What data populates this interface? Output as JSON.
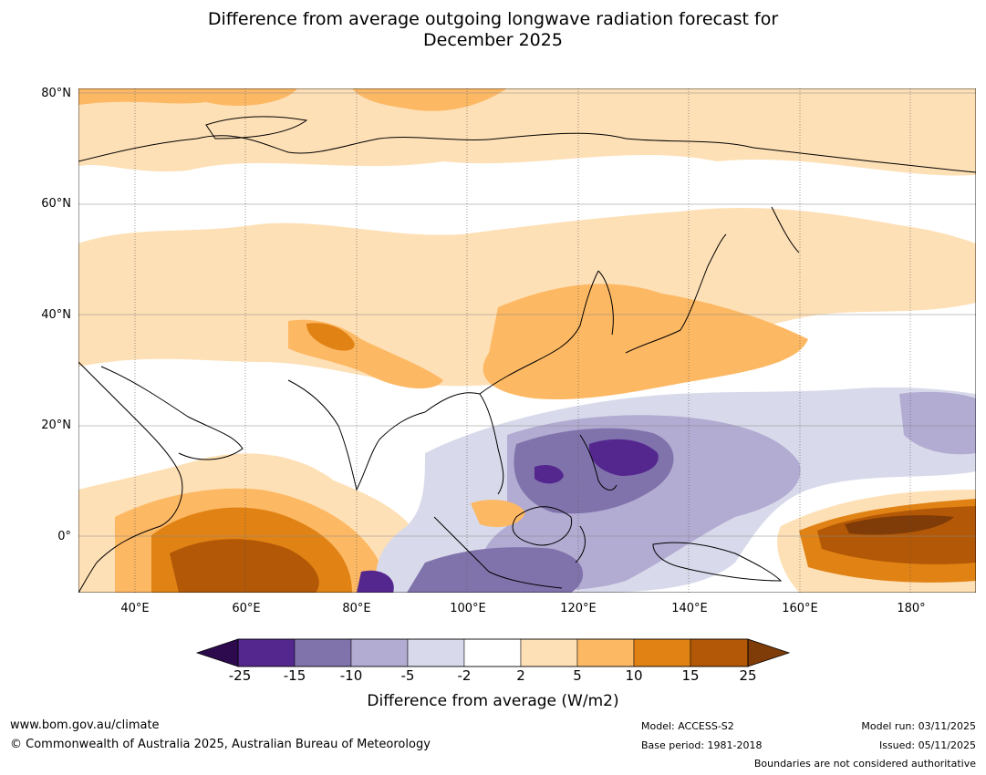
{
  "title": {
    "line1": "Difference from average outgoing longwave radiation forecast for",
    "line2": "December 2025"
  },
  "axes": {
    "lat_labels": [
      "80°N",
      "60°N",
      "40°N",
      "20°N",
      "0°"
    ],
    "lon_labels": [
      "40°E",
      "60°E",
      "80°E",
      "100°E",
      "120°E",
      "140°E",
      "160°E",
      "180°"
    ]
  },
  "colorbar": {
    "title": "Difference from average (W/m2)",
    "levels": [
      "-25",
      "-15",
      "-10",
      "-5",
      "-2",
      "2",
      "5",
      "10",
      "15",
      "25"
    ],
    "colors": {
      "below": "#2d0a4e",
      "b1": "#54278f",
      "b2": "#8073ac",
      "b3": "#b2abd2",
      "b4": "#d8daeb",
      "b5": "#ffffff",
      "b6": "#fee0b6",
      "b7": "#fdb863",
      "b8": "#e08214",
      "b9": "#b35806",
      "above": "#7f3b08"
    }
  },
  "footer": {
    "url": "www.bom.gov.au/climate",
    "copyright": "© Commonwealth of Australia 2025, Australian Bureau of Meteorology",
    "model": "Model: ACCESS-S2",
    "base_period": "Base period: 1981-2018",
    "model_run": "Model run: 03/11/2025",
    "issued": "Issued: 05/11/2025",
    "disclaimer": "Boundaries are not considered authoritative"
  }
}
